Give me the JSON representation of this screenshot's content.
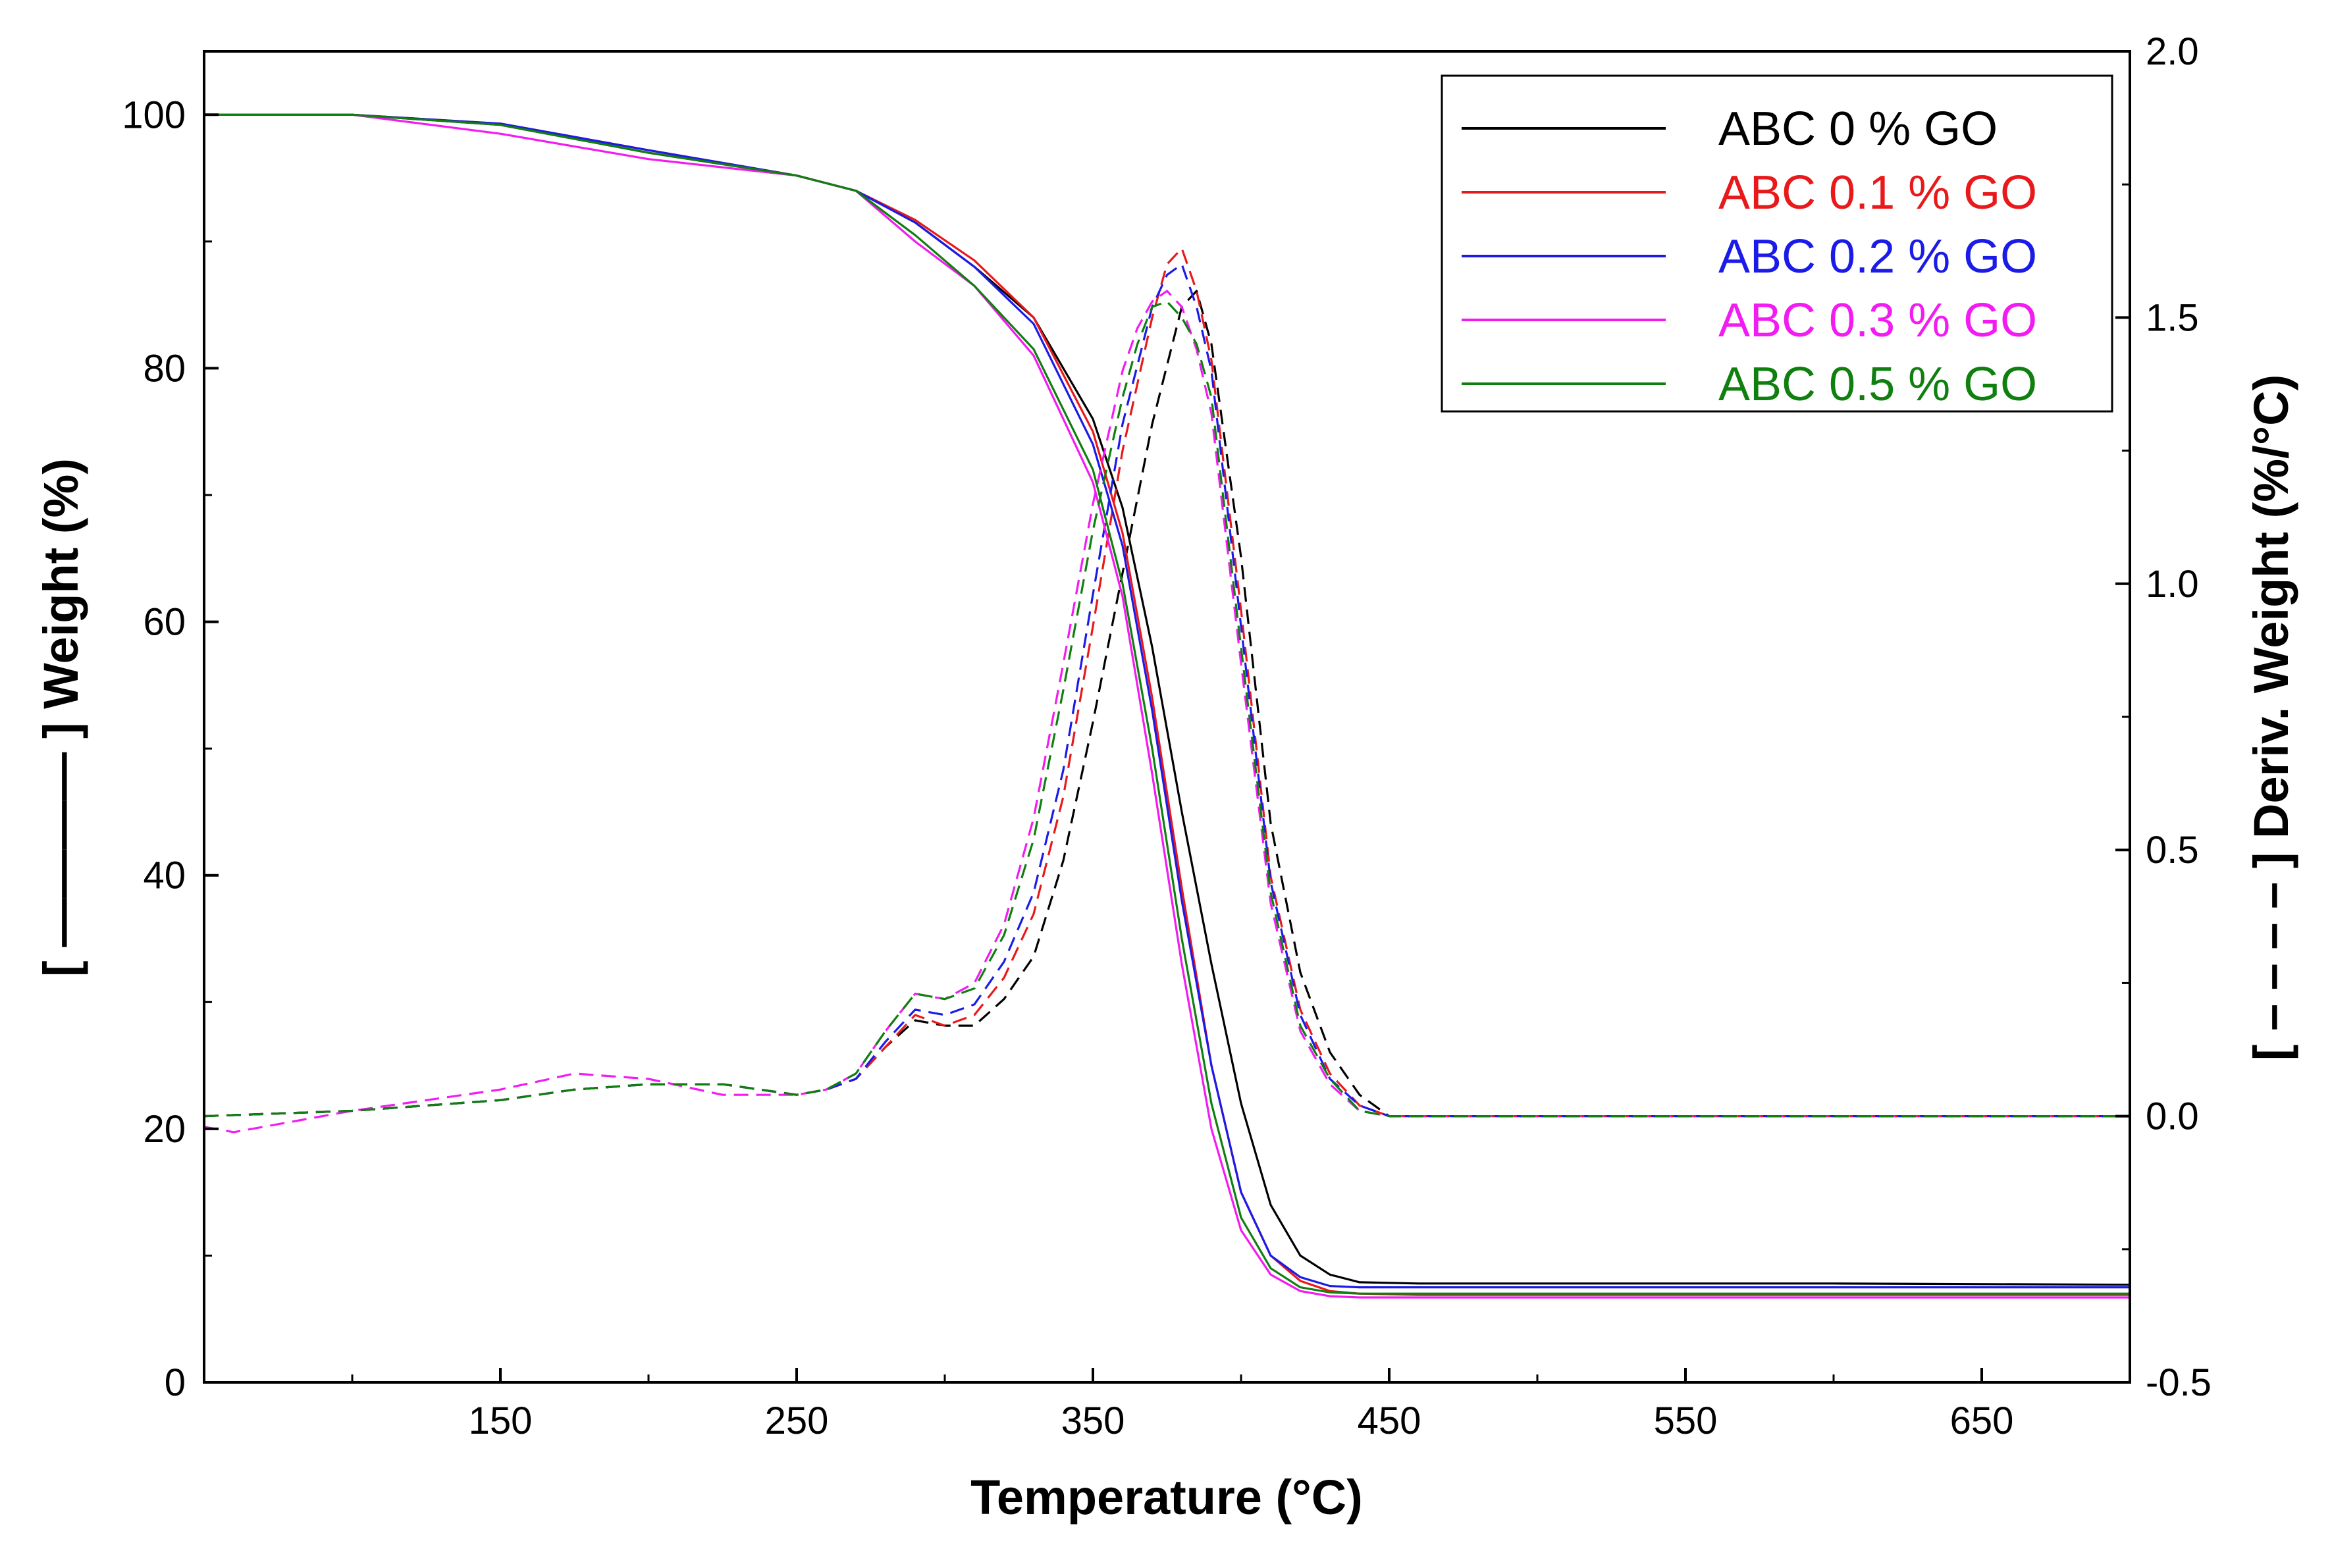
{
  "chart_data": {
    "type": "line",
    "xlabel": "Temperature (°C)",
    "ylabel_left": "[ ———— ] Weight (%)",
    "ylabel_right": "[ – – – – ] Deriv. Weight (%/°C)",
    "xlim": [
      50,
      700
    ],
    "ylim_left": [
      0,
      105
    ],
    "ylim_right": [
      -0.5,
      2.0
    ],
    "x_ticks": [
      "150",
      "250",
      "350",
      "450",
      "550",
      "650"
    ],
    "y_left_ticks": [
      "0",
      "20",
      "40",
      "60",
      "80",
      "100"
    ],
    "y_right_ticks": [
      "-0.5",
      "0.0",
      "0.5",
      "1.0",
      "1.5",
      "2.0"
    ],
    "legend_position": "top-right",
    "grid": false,
    "series": [
      {
        "name": "ABC 0 % GO",
        "color": "#000000",
        "weight": {
          "x": [
            50,
            100,
            150,
            200,
            250,
            270,
            290,
            310,
            330,
            350,
            360,
            370,
            380,
            390,
            400,
            410,
            420,
            430,
            440,
            460,
            500,
            600,
            700
          ],
          "y": [
            100,
            100,
            99.2,
            97,
            95.2,
            94,
            91.5,
            88,
            84,
            76,
            69,
            58,
            45,
            33,
            22,
            14,
            10,
            8.5,
            7.9,
            7.8,
            7.8,
            7.8,
            7.7
          ]
        },
        "derivative": {
          "x": [
            50,
            100,
            150,
            175,
            200,
            225,
            250,
            260,
            270,
            280,
            290,
            300,
            310,
            320,
            330,
            340,
            350,
            360,
            370,
            380,
            385,
            390,
            400,
            410,
            420,
            430,
            440,
            450,
            500,
            700
          ],
          "y": [
            0.0,
            0.01,
            0.03,
            0.05,
            0.06,
            0.06,
            0.04,
            0.05,
            0.07,
            0.13,
            0.18,
            0.17,
            0.17,
            0.22,
            0.3,
            0.48,
            0.74,
            1.02,
            1.3,
            1.52,
            1.55,
            1.45,
            1.05,
            0.55,
            0.27,
            0.12,
            0.04,
            0.0,
            0.0,
            0.0
          ]
        }
      },
      {
        "name": "ABC 0.1 % GO",
        "color": "#e8191b",
        "weight": {
          "x": [
            50,
            100,
            150,
            200,
            250,
            270,
            290,
            310,
            330,
            350,
            360,
            370,
            380,
            390,
            400,
            410,
            420,
            430,
            440,
            460,
            500,
            600,
            700
          ],
          "y": [
            100,
            100,
            99.3,
            97.2,
            95.2,
            94,
            91.7,
            88.5,
            84,
            75,
            67,
            54,
            39,
            25,
            15,
            10,
            8,
            7.2,
            7.0,
            6.9,
            6.9,
            6.9,
            6.9
          ]
        },
        "derivative": {
          "x": [
            50,
            100,
            150,
            175,
            200,
            225,
            250,
            260,
            270,
            280,
            290,
            300,
            310,
            320,
            330,
            340,
            350,
            360,
            370,
            375,
            380,
            385,
            390,
            400,
            410,
            420,
            430,
            440,
            450,
            500,
            700
          ],
          "y": [
            0.0,
            0.01,
            0.03,
            0.05,
            0.06,
            0.06,
            0.04,
            0.05,
            0.07,
            0.13,
            0.19,
            0.17,
            0.19,
            0.26,
            0.38,
            0.6,
            0.92,
            1.25,
            1.5,
            1.6,
            1.63,
            1.55,
            1.42,
            0.95,
            0.45,
            0.2,
            0.08,
            0.02,
            0.0,
            0.0,
            0.0
          ]
        }
      },
      {
        "name": "ABC 0.2 % GO",
        "color": "#1b1be8",
        "weight": {
          "x": [
            50,
            100,
            150,
            200,
            250,
            270,
            290,
            310,
            330,
            350,
            360,
            370,
            380,
            390,
            400,
            410,
            420,
            430,
            440,
            460,
            500,
            600,
            700
          ],
          "y": [
            100,
            100,
            99.3,
            97.2,
            95.2,
            94,
            91.5,
            88,
            83.5,
            74,
            66,
            53,
            38,
            25,
            15,
            10,
            8.3,
            7.6,
            7.5,
            7.5,
            7.5,
            7.5,
            7.5
          ]
        },
        "derivative": {
          "x": [
            50,
            100,
            150,
            175,
            200,
            225,
            250,
            260,
            270,
            280,
            290,
            300,
            310,
            320,
            330,
            340,
            350,
            360,
            370,
            375,
            380,
            385,
            390,
            400,
            410,
            420,
            430,
            440,
            450,
            500,
            700
          ],
          "y": [
            0.0,
            0.01,
            0.03,
            0.05,
            0.06,
            0.06,
            0.04,
            0.05,
            0.07,
            0.14,
            0.2,
            0.19,
            0.21,
            0.29,
            0.42,
            0.65,
            0.98,
            1.3,
            1.52,
            1.58,
            1.6,
            1.52,
            1.4,
            0.92,
            0.44,
            0.19,
            0.07,
            0.02,
            0.0,
            0.0,
            0.0
          ]
        }
      },
      {
        "name": "ABC 0.3 % GO",
        "color": "#f21bf2",
        "weight": {
          "x": [
            50,
            100,
            150,
            200,
            250,
            270,
            290,
            310,
            330,
            350,
            360,
            370,
            380,
            390,
            400,
            410,
            420,
            430,
            440,
            460,
            500,
            600,
            700
          ],
          "y": [
            100,
            100,
            98.5,
            96.5,
            95.2,
            94,
            90,
            86.5,
            81,
            71,
            62,
            48,
            33,
            20,
            12,
            8.5,
            7.2,
            6.8,
            6.7,
            6.7,
            6.7,
            6.7,
            6.7
          ]
        },
        "derivative": {
          "x": [
            50,
            60,
            100,
            150,
            175,
            200,
            225,
            250,
            260,
            270,
            280,
            290,
            300,
            310,
            320,
            330,
            340,
            350,
            360,
            365,
            370,
            375,
            380,
            385,
            390,
            400,
            410,
            420,
            430,
            440,
            450,
            500,
            700
          ],
          "y": [
            -0.02,
            -0.03,
            0.01,
            0.05,
            0.08,
            0.07,
            0.04,
            0.04,
            0.05,
            0.08,
            0.16,
            0.23,
            0.22,
            0.25,
            0.36,
            0.56,
            0.85,
            1.15,
            1.4,
            1.48,
            1.53,
            1.55,
            1.52,
            1.44,
            1.32,
            0.85,
            0.4,
            0.16,
            0.06,
            0.01,
            0.0,
            0.0,
            0.0
          ]
        }
      },
      {
        "name": "ABC 0.5 % GO",
        "color": "#0f7f0f",
        "weight": {
          "x": [
            50,
            100,
            150,
            200,
            250,
            270,
            290,
            310,
            330,
            350,
            360,
            370,
            380,
            390,
            400,
            410,
            420,
            430,
            440,
            460,
            500,
            600,
            700
          ],
          "y": [
            100,
            100,
            99.2,
            97,
            95.2,
            94,
            90.5,
            86.5,
            81.5,
            72,
            63,
            50,
            35,
            22,
            13,
            9,
            7.5,
            7.1,
            7.0,
            7.0,
            7.0,
            7.0,
            7.0
          ]
        },
        "derivative": {
          "x": [
            50,
            100,
            150,
            175,
            200,
            225,
            250,
            260,
            270,
            280,
            290,
            300,
            310,
            320,
            330,
            340,
            350,
            360,
            365,
            370,
            375,
            380,
            385,
            390,
            400,
            410,
            420,
            430,
            440,
            450,
            500,
            700
          ],
          "y": [
            0.0,
            0.01,
            0.03,
            0.05,
            0.06,
            0.06,
            0.04,
            0.05,
            0.08,
            0.16,
            0.23,
            0.22,
            0.24,
            0.34,
            0.52,
            0.8,
            1.1,
            1.35,
            1.45,
            1.52,
            1.53,
            1.5,
            1.45,
            1.35,
            0.88,
            0.42,
            0.17,
            0.07,
            0.01,
            0.0,
            0.0,
            0.0
          ]
        }
      }
    ]
  }
}
